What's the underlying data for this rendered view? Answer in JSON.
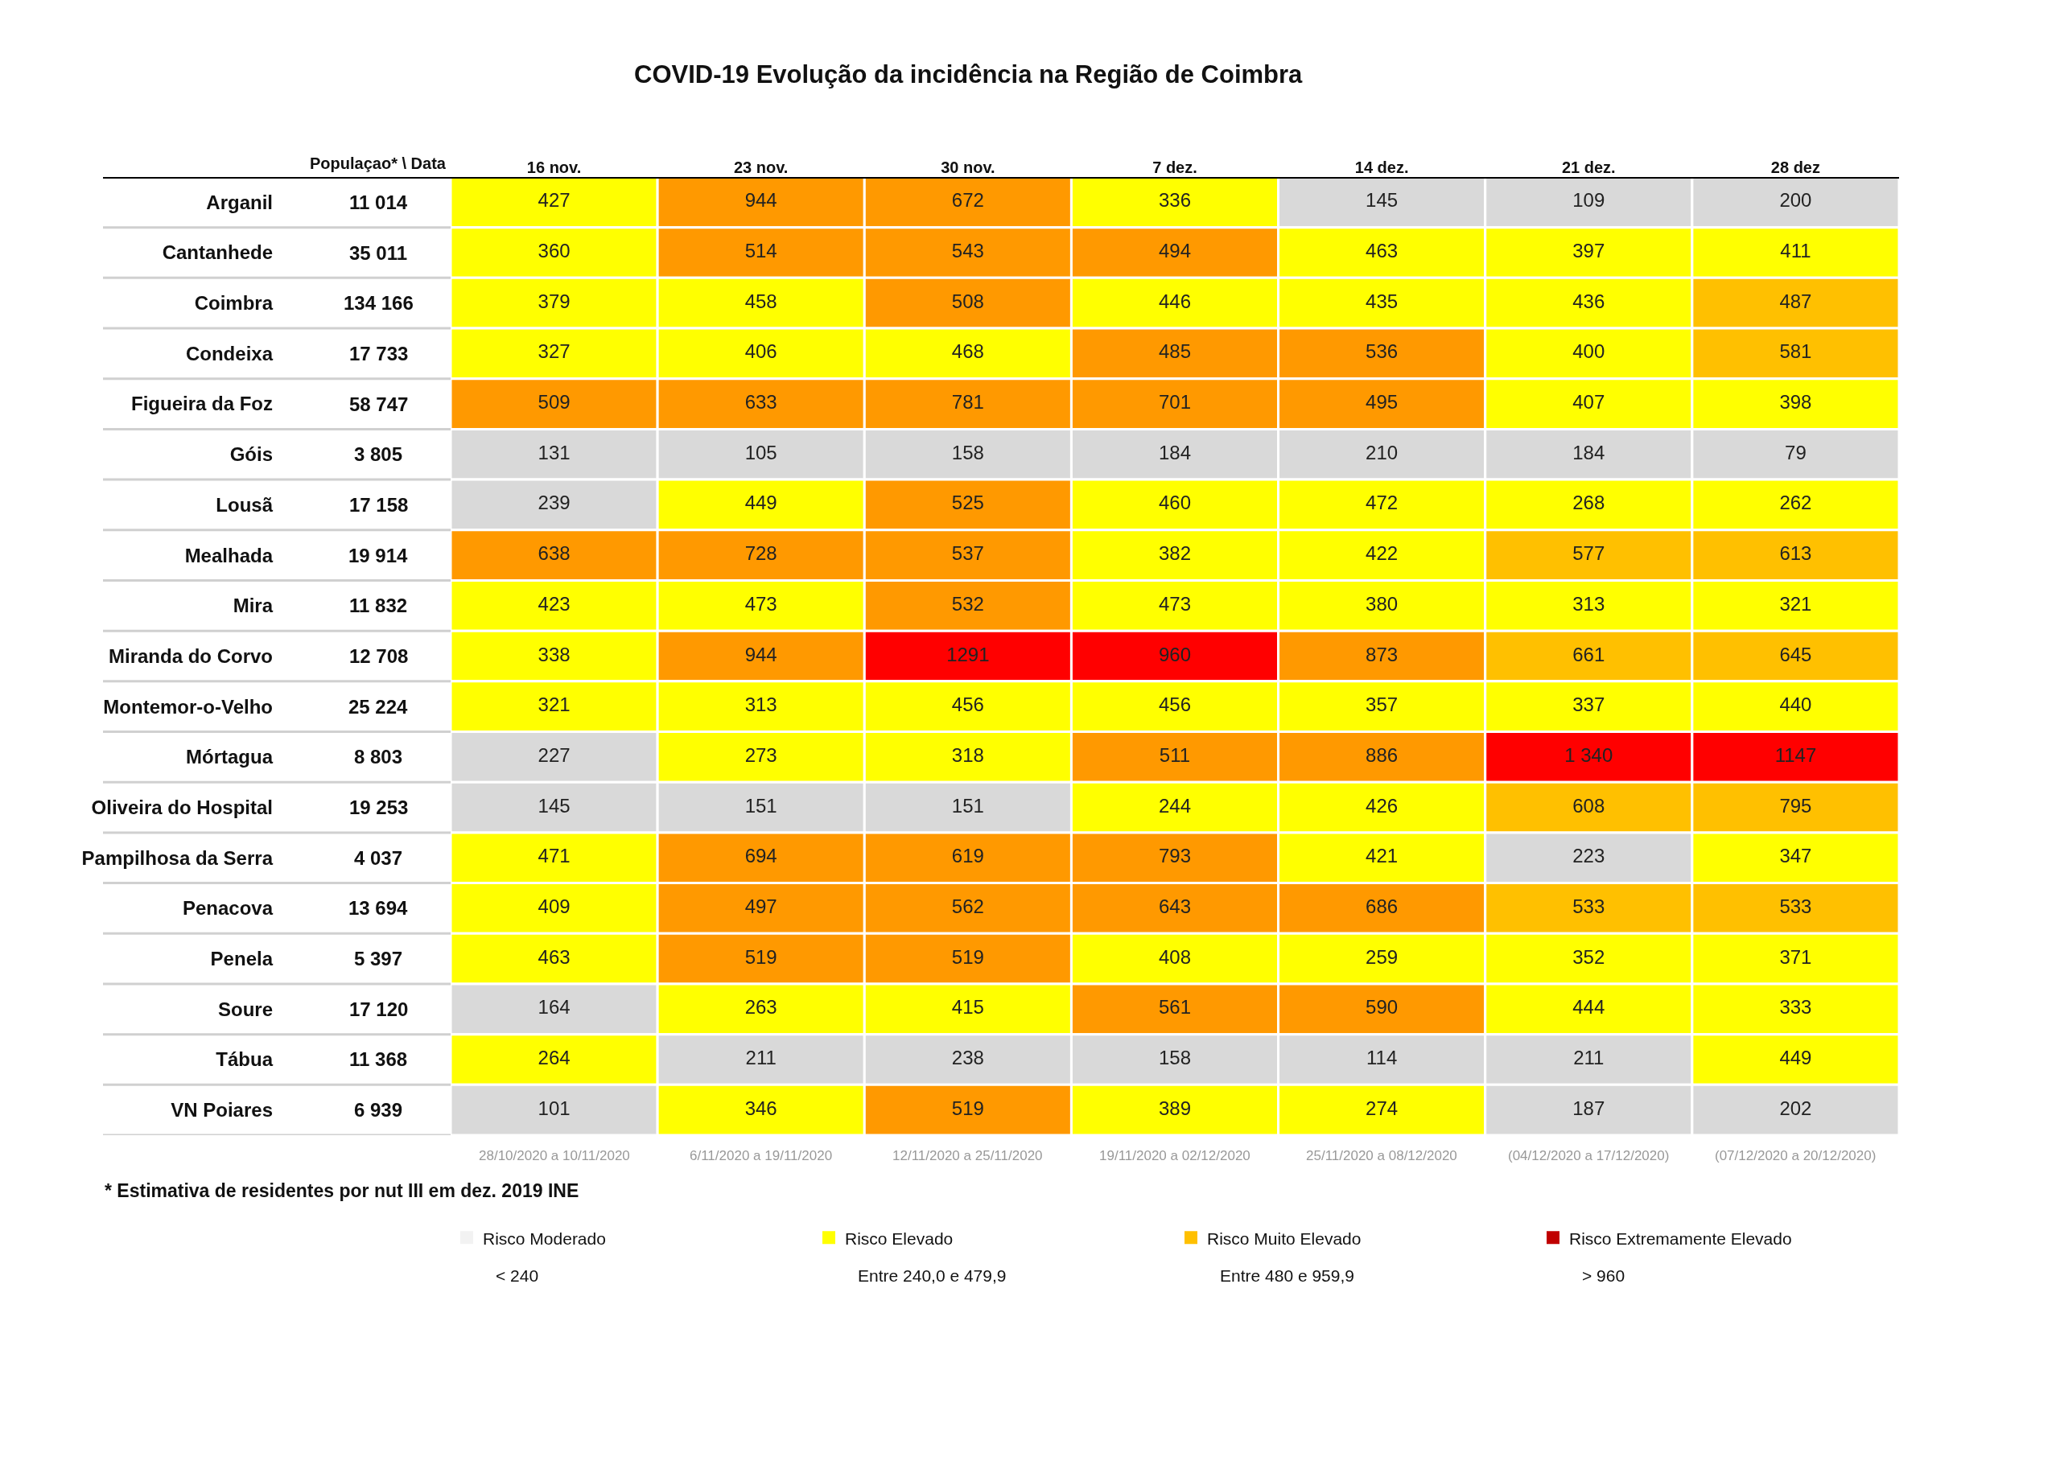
{
  "chart_data": {
    "type": "heatmap",
    "title": "COVID-19 Evolução da incidência na Região de Coimbra",
    "categories": [
      "16 nov.",
      "23 nov.",
      "30 nov.",
      "7 dez.",
      "14 dez.",
      "21 dez.",
      "28 dez"
    ],
    "y_categories": [
      "Arganil",
      "Cantanhede",
      "Coimbra",
      "Condeixa",
      "Figueira da Foz",
      "Góis",
      "Lousã",
      "Mealhada",
      "Mira",
      "Miranda do Corvo",
      "Montemor-o-Velho",
      "Mórtagua",
      "Oliveira do Hospital",
      "Pampilhosa da Serra",
      "Penacova",
      "Penela",
      "Soure",
      "Tábua",
      "VN Poiares"
    ],
    "y2_categories": [
      "11 014",
      "35 011",
      "134 166",
      "17 733",
      "58 747",
      "3 805",
      "17 158",
      "19 914",
      "11 832",
      "12 708",
      "25 224",
      "8 803",
      "19 253",
      "4 037",
      "13 694",
      "5 397",
      "17 120",
      "11 368",
      "6 939"
    ],
    "y2label": "Populaçao* \\ Data",
    "data_labels": true,
    "legend": "bottom",
    "cells": [
      [
        427,
        944,
        672,
        336,
        145,
        109,
        200
      ],
      [
        360,
        514,
        543,
        494,
        463,
        397,
        411
      ],
      [
        379,
        458,
        508,
        446,
        435,
        436,
        487
      ],
      [
        327,
        406,
        468,
        485,
        536,
        400,
        581
      ],
      [
        509,
        633,
        781,
        701,
        495,
        407,
        398
      ],
      [
        131,
        105,
        158,
        184,
        210,
        184,
        79
      ],
      [
        239,
        449,
        525,
        460,
        472,
        268,
        262
      ],
      [
        638,
        728,
        537,
        382,
        422,
        577,
        613
      ],
      [
        423,
        473,
        532,
        473,
        380,
        313,
        321
      ],
      [
        338,
        944,
        1291,
        960,
        873,
        661,
        645
      ],
      [
        321,
        313,
        456,
        456,
        357,
        337,
        440
      ],
      [
        227,
        273,
        318,
        511,
        886,
        1340,
        1147
      ],
      [
        145,
        151,
        151,
        244,
        426,
        608,
        795
      ],
      [
        471,
        694,
        619,
        793,
        421,
        223,
        347
      ],
      [
        409,
        497,
        562,
        643,
        686,
        533,
        533
      ],
      [
        463,
        519,
        519,
        408,
        259,
        352,
        371
      ],
      [
        164,
        263,
        415,
        561,
        590,
        444,
        333
      ],
      [
        264,
        211,
        238,
        158,
        114,
        211,
        449
      ],
      [
        101,
        346,
        519,
        389,
        274,
        187,
        202
      ]
    ],
    "cell_labels": [
      [
        "427",
        "944",
        "672",
        "336",
        "145",
        "109",
        "200"
      ],
      [
        "360",
        "514",
        "543",
        "494",
        "463",
        "397",
        "411"
      ],
      [
        "379",
        "458",
        "508",
        "446",
        "435",
        "436",
        "487"
      ],
      [
        "327",
        "406",
        "468",
        "485",
        "536",
        "400",
        "581"
      ],
      [
        "509",
        "633",
        "781",
        "701",
        "495",
        "407",
        "398"
      ],
      [
        "131",
        "105",
        "158",
        "184",
        "210",
        "184",
        "79"
      ],
      [
        "239",
        "449",
        "525",
        "460",
        "472",
        "268",
        "262"
      ],
      [
        "638",
        "728",
        "537",
        "382",
        "422",
        "577",
        "613"
      ],
      [
        "423",
        "473",
        "532",
        "473",
        "380",
        "313",
        "321"
      ],
      [
        "338",
        "944",
        "1291",
        "960",
        "873",
        "661",
        "645"
      ],
      [
        "321",
        "313",
        "456",
        "456",
        "357",
        "337",
        "440"
      ],
      [
        "227",
        "273",
        "318",
        "511",
        "886",
        "1 340",
        "1147"
      ],
      [
        "145",
        "151",
        "151",
        "244",
        "426",
        "608",
        "795"
      ],
      [
        "471",
        "694",
        "619",
        "793",
        "421",
        "223",
        "347"
      ],
      [
        "409",
        "497",
        "562",
        "643",
        "686",
        "533",
        "533"
      ],
      [
        "463",
        "519",
        "519",
        "408",
        "259",
        "352",
        "371"
      ],
      [
        "164",
        "263",
        "415",
        "561",
        "590",
        "444",
        "333"
      ],
      [
        "264",
        "211",
        "238",
        "158",
        "114",
        "211",
        "449"
      ],
      [
        "101",
        "346",
        "519",
        "389",
        "274",
        "187",
        "202"
      ]
    ],
    "colors": [
      [
        "#ffff00",
        "#ff9900",
        "#ff9900",
        "#ffff00",
        "#d9d9d9",
        "#d9d9d9",
        "#d9d9d9"
      ],
      [
        "#ffff00",
        "#ff9900",
        "#ff9900",
        "#ff9900",
        "#ffff00",
        "#ffff00",
        "#ffff00"
      ],
      [
        "#ffff00",
        "#ffff00",
        "#ff9900",
        "#ffff00",
        "#ffff00",
        "#ffff00",
        "#ffc000"
      ],
      [
        "#ffff00",
        "#ffff00",
        "#ffff00",
        "#ff9900",
        "#ff9900",
        "#ffff00",
        "#ffc000"
      ],
      [
        "#ff9900",
        "#ff9900",
        "#ff9900",
        "#ff9900",
        "#ff9900",
        "#ffff00",
        "#ffff00"
      ],
      [
        "#d9d9d9",
        "#d9d9d9",
        "#d9d9d9",
        "#d9d9d9",
        "#d9d9d9",
        "#d9d9d9",
        "#d9d9d9"
      ],
      [
        "#d9d9d9",
        "#ffff00",
        "#ff9900",
        "#ffff00",
        "#ffff00",
        "#ffff00",
        "#ffff00"
      ],
      [
        "#ff9900",
        "#ff9900",
        "#ff9900",
        "#ffff00",
        "#ffff00",
        "#ffc000",
        "#ffc000"
      ],
      [
        "#ffff00",
        "#ffff00",
        "#ff9900",
        "#ffff00",
        "#ffff00",
        "#ffff00",
        "#ffff00"
      ],
      [
        "#ffff00",
        "#ff9900",
        "#ff0000",
        "#ff0000",
        "#ff9900",
        "#ffc000",
        "#ffc000"
      ],
      [
        "#ffff00",
        "#ffff00",
        "#ffff00",
        "#ffff00",
        "#ffff00",
        "#ffff00",
        "#ffff00"
      ],
      [
        "#d9d9d9",
        "#ffff00",
        "#ffff00",
        "#ff9900",
        "#ff9900",
        "#ff0000",
        "#ff0000"
      ],
      [
        "#d9d9d9",
        "#d9d9d9",
        "#d9d9d9",
        "#ffff00",
        "#ffff00",
        "#ffc000",
        "#ffc000"
      ],
      [
        "#ffff00",
        "#ff9900",
        "#ff9900",
        "#ff9900",
        "#ffff00",
        "#d9d9d9",
        "#ffff00"
      ],
      [
        "#ffff00",
        "#ff9900",
        "#ff9900",
        "#ff9900",
        "#ff9900",
        "#ffc000",
        "#ffc000"
      ],
      [
        "#ffff00",
        "#ff9900",
        "#ff9900",
        "#ffff00",
        "#ffff00",
        "#ffff00",
        "#ffff00"
      ],
      [
        "#d9d9d9",
        "#ffff00",
        "#ffff00",
        "#ff9900",
        "#ff9900",
        "#ffff00",
        "#ffff00"
      ],
      [
        "#ffff00",
        "#d9d9d9",
        "#d9d9d9",
        "#d9d9d9",
        "#d9d9d9",
        "#d9d9d9",
        "#ffff00"
      ],
      [
        "#d9d9d9",
        "#ffff00",
        "#ff9900",
        "#ffff00",
        "#ffff00",
        "#d9d9d9",
        "#d9d9d9"
      ]
    ],
    "series": [
      {
        "name": "Risco Moderado",
        "color": "#f2f2f2",
        "values": [
          null,
          null,
          null,
          null,
          null,
          null,
          null
        ]
      },
      {
        "name": "Risco Elevado",
        "color": "#ffff00",
        "values": [
          null,
          null,
          null,
          null,
          null,
          null,
          null
        ]
      },
      {
        "name": "Risco Muito Elevado",
        "color": "#ffc000",
        "values": [
          null,
          null,
          null,
          null,
          null,
          null,
          null
        ]
      },
      {
        "name": "Risco Extremamente Elevado",
        "color": "#c00000",
        "values": [
          null,
          null,
          null,
          null,
          null,
          null,
          null
        ]
      }
    ],
    "annotations": [
      "28/10/2020 a 10/11/2020",
      "6/11/2020 a 19/11/2020",
      "12/11/2020 a 25/11/2020",
      "19/11/2020 a 02/12/2020",
      "25/11/2020 a 08/12/2020",
      "(04/12/2020 a 17/12/2020)",
      "(07/12/2020 a 20/12/2020)",
      "* Estimativa de residentes por nut III em dez. 2019 INE",
      "< 240",
      "Entre 240,0 e 479,9",
      "Entre 480 e 959,9",
      "> 960"
    ]
  }
}
